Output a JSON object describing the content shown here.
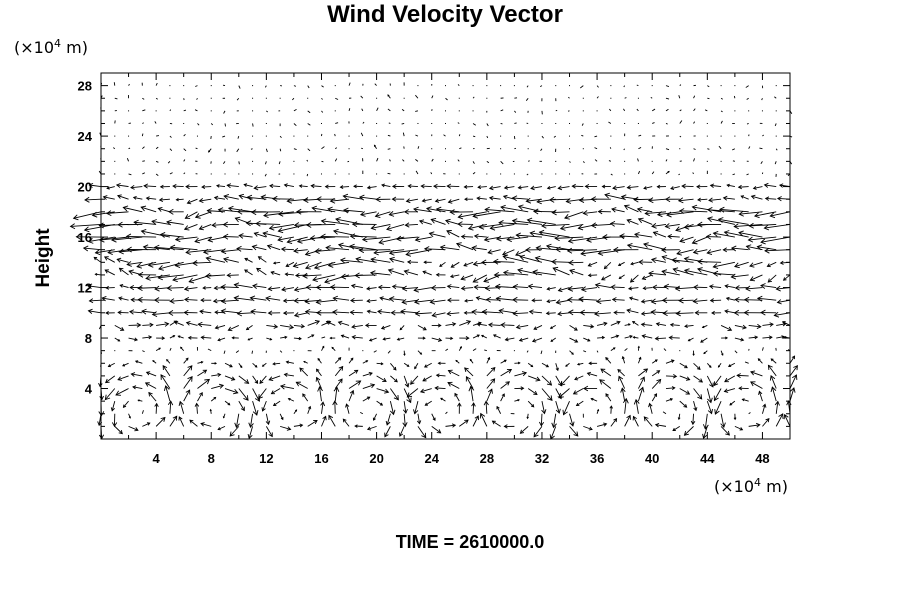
{
  "title": "Wind Velocity Vector",
  "ylabel": "Height",
  "y_unit": {
    "prefix": "(×10",
    "exp": "4",
    "suffix": " m)"
  },
  "x_unit": {
    "prefix": "(×10",
    "exp": "4",
    "suffix": " m)"
  },
  "footer": "TIME = 2610000.0",
  "chart_data": {
    "type": "quiver",
    "title": "Wind Velocity Vector",
    "xlabel": "",
    "ylabel": "Height",
    "x_unit": "×10^4 m",
    "y_unit": "×10^4 m",
    "xlim": [
      0,
      50
    ],
    "ylim": [
      0,
      29
    ],
    "x_ticks": [
      4,
      8,
      12,
      16,
      20,
      24,
      28,
      32,
      36,
      40,
      44,
      48
    ],
    "y_ticks": [
      4,
      8,
      12,
      16,
      20,
      24,
      28
    ],
    "grid": false,
    "arrow_color": "#000000",
    "time": "2610000.0"
  }
}
